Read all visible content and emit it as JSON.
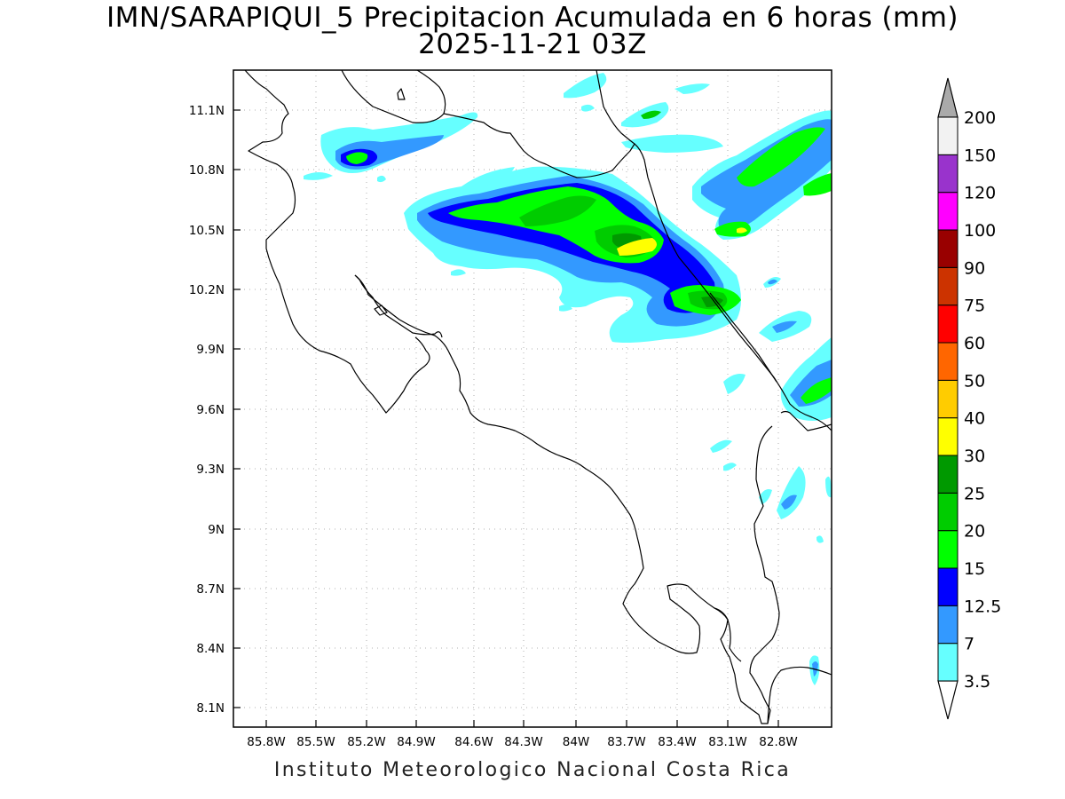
{
  "header": {
    "title": "IMN/SARAPIQUI_5 Precipitacion Acumulada en 6 horas (mm)",
    "subtitle": "2025-11-21 03Z"
  },
  "footer": {
    "credit": "Instituto Meteorologico Nacional Costa Rica"
  },
  "map": {
    "lat_range": [
      8.0,
      11.3
    ],
    "lon_range": [
      -86.0,
      -83.0
    ],
    "lat_labels": [
      "11.1N",
      "10.8N",
      "10.5N",
      "10.2N",
      "9.9N",
      "9.6N",
      "9.3N",
      "9N",
      "8.7N",
      "8.4N",
      "8.1N"
    ],
    "lon_labels": [
      "85.8W",
      "85.5W",
      "85.2W",
      "84.9W",
      "84.6W",
      "84.3W",
      "84W",
      "83.7W",
      "83.4W",
      "83.1W",
      "82.8W"
    ],
    "grid": "dotted"
  },
  "colorbar": {
    "labels": [
      "3.5",
      "7",
      "12.5",
      "15",
      "20",
      "25",
      "30",
      "40",
      "50",
      "60",
      "75",
      "90",
      "100",
      "120",
      "150",
      "200"
    ],
    "colors": [
      "#66ffff",
      "#3399ff",
      "#0000ff",
      "#00ff00",
      "#00cc00",
      "#009900",
      "#ffff00",
      "#ffcc00",
      "#ff6600",
      "#ff0000",
      "#cc3300",
      "#990000",
      "#ff00ff",
      "#9933cc",
      "#f2f2f2",
      "#aaaaaa"
    ],
    "units": "mm"
  },
  "colors": {
    "c1": "#66ffff",
    "c2": "#3399ff",
    "c3": "#0000ff",
    "c4": "#00ff00",
    "c5": "#00cc00",
    "c6": "#009900",
    "c7": "#ffff00"
  }
}
